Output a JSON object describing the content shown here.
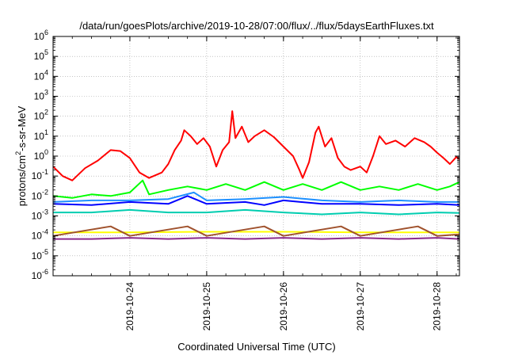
{
  "chart_data": {
    "type": "line",
    "title": "/data/run/goesPlots/archive/2019-10-28/07:00/flux/../flux/5daysEarthFluxes.txt",
    "xlabel": "Coordinated Universal Time (UTC)",
    "ylabel_parts": {
      "base": "protons/cm",
      "sup": "2",
      "rest": "-s-sr-MeV"
    },
    "y_scale": "log",
    "ylim": [
      1e-06,
      1000000.0
    ],
    "y_tick_exponents": [
      -6,
      -5,
      -4,
      -3,
      -2,
      -1,
      0,
      1,
      2,
      3,
      4,
      5,
      6
    ],
    "y_tick_base": "10",
    "xlim": [
      "2019-10-23T00:00",
      "2019-10-28T07:00"
    ],
    "x_ticks": [
      "2019-10-24",
      "2019-10-25",
      "2019-10-26",
      "2019-10-27",
      "2019-10-28"
    ],
    "grid": true,
    "series": [
      {
        "color": "#ff0000",
        "points": [
          [
            "2019-10-23T00:00",
            0.3
          ],
          [
            "2019-10-23T03:00",
            0.1
          ],
          [
            "2019-10-23T06:00",
            0.06
          ],
          [
            "2019-10-23T10:00",
            0.25
          ],
          [
            "2019-10-23T14:00",
            0.6
          ],
          [
            "2019-10-23T18:00",
            2.0
          ],
          [
            "2019-10-23T21:00",
            1.8
          ],
          [
            "2019-10-24T00:00",
            0.8
          ],
          [
            "2019-10-24T03:00",
            0.15
          ],
          [
            "2019-10-24T06:00",
            0.08
          ],
          [
            "2019-10-24T10:00",
            0.15
          ],
          [
            "2019-10-24T12:00",
            0.4
          ],
          [
            "2019-10-24T14:00",
            2.0
          ],
          [
            "2019-10-24T16:00",
            6.0
          ],
          [
            "2019-10-24T17:00",
            20.0
          ],
          [
            "2019-10-24T19:00",
            10.0
          ],
          [
            "2019-10-24T21:00",
            4.0
          ],
          [
            "2019-10-24T23:00",
            8.0
          ],
          [
            "2019-10-25T01:00",
            3.0
          ],
          [
            "2019-10-25T03:00",
            0.3
          ],
          [
            "2019-10-25T05:00",
            2.0
          ],
          [
            "2019-10-25T07:00",
            5.0
          ],
          [
            "2019-10-25T08:00",
            180.0
          ],
          [
            "2019-10-25T09:00",
            8.0
          ],
          [
            "2019-10-25T11:00",
            30.0
          ],
          [
            "2019-10-25T13:00",
            5.0
          ],
          [
            "2019-10-25T15:00",
            10.0
          ],
          [
            "2019-10-25T18:00",
            20.0
          ],
          [
            "2019-10-25T21:00",
            9.0
          ],
          [
            "2019-10-26T00:00",
            3.0
          ],
          [
            "2019-10-26T03:00",
            1.0
          ],
          [
            "2019-10-26T05:00",
            0.2
          ],
          [
            "2019-10-26T06:00",
            0.08
          ],
          [
            "2019-10-26T08:00",
            0.5
          ],
          [
            "2019-10-26T10:00",
            15.0
          ],
          [
            "2019-10-26T11:00",
            30.0
          ],
          [
            "2019-10-26T13:00",
            3.0
          ],
          [
            "2019-10-26T15:00",
            8.0
          ],
          [
            "2019-10-26T17:00",
            0.8
          ],
          [
            "2019-10-26T19:00",
            0.3
          ],
          [
            "2019-10-26T21:00",
            0.2
          ],
          [
            "2019-10-27T00:00",
            0.3
          ],
          [
            "2019-10-27T02:00",
            0.15
          ],
          [
            "2019-10-27T04:00",
            1.0
          ],
          [
            "2019-10-27T06:00",
            10.0
          ],
          [
            "2019-10-27T08:00",
            4.0
          ],
          [
            "2019-10-27T11:00",
            6.0
          ],
          [
            "2019-10-27T14:00",
            3.0
          ],
          [
            "2019-10-27T17:00",
            8.0
          ],
          [
            "2019-10-27T20:00",
            5.0
          ],
          [
            "2019-10-27T22:00",
            3.0
          ],
          [
            "2019-10-28T00:00",
            1.5
          ],
          [
            "2019-10-28T02:00",
            0.8
          ],
          [
            "2019-10-28T04:00",
            0.4
          ],
          [
            "2019-10-28T06:00",
            0.9
          ],
          [
            "2019-10-28T07:00",
            0.7
          ]
        ]
      },
      {
        "color": "#00ff00",
        "points": [
          [
            "2019-10-23T00:00",
            0.01
          ],
          [
            "2019-10-23T06:00",
            0.008
          ],
          [
            "2019-10-23T12:00",
            0.012
          ],
          [
            "2019-10-23T18:00",
            0.01
          ],
          [
            "2019-10-24T00:00",
            0.015
          ],
          [
            "2019-10-24T04:00",
            0.06
          ],
          [
            "2019-10-24T06:00",
            0.012
          ],
          [
            "2019-10-24T12:00",
            0.02
          ],
          [
            "2019-10-24T18:00",
            0.03
          ],
          [
            "2019-10-25T00:00",
            0.02
          ],
          [
            "2019-10-25T06:00",
            0.04
          ],
          [
            "2019-10-25T12:00",
            0.02
          ],
          [
            "2019-10-25T18:00",
            0.05
          ],
          [
            "2019-10-26T00:00",
            0.02
          ],
          [
            "2019-10-26T06:00",
            0.04
          ],
          [
            "2019-10-26T12:00",
            0.02
          ],
          [
            "2019-10-26T18:00",
            0.05
          ],
          [
            "2019-10-27T00:00",
            0.02
          ],
          [
            "2019-10-27T06:00",
            0.03
          ],
          [
            "2019-10-27T12:00",
            0.02
          ],
          [
            "2019-10-27T18:00",
            0.04
          ],
          [
            "2019-10-28T00:00",
            0.02
          ],
          [
            "2019-10-28T04:00",
            0.03
          ],
          [
            "2019-10-28T07:00",
            0.05
          ]
        ]
      },
      {
        "color": "#0000ff",
        "points": [
          [
            "2019-10-23T00:00",
            0.004
          ],
          [
            "2019-10-23T12:00",
            0.0035
          ],
          [
            "2019-10-24T00:00",
            0.005
          ],
          [
            "2019-10-24T12:00",
            0.004
          ],
          [
            "2019-10-24T18:00",
            0.01
          ],
          [
            "2019-10-25T00:00",
            0.004
          ],
          [
            "2019-10-25T12:00",
            0.005
          ],
          [
            "2019-10-25T18:00",
            0.0035
          ],
          [
            "2019-10-26T00:00",
            0.006
          ],
          [
            "2019-10-26T12:00",
            0.004
          ],
          [
            "2019-10-27T00:00",
            0.004
          ],
          [
            "2019-10-27T12:00",
            0.0035
          ],
          [
            "2019-10-28T00:00",
            0.004
          ],
          [
            "2019-10-28T07:00",
            0.0035
          ]
        ]
      },
      {
        "color": "#1e90ff",
        "points": [
          [
            "2019-10-23T00:00",
            0.005
          ],
          [
            "2019-10-23T12:00",
            0.006
          ],
          [
            "2019-10-24T00:00",
            0.006
          ],
          [
            "2019-10-24T12:00",
            0.007
          ],
          [
            "2019-10-24T20:00",
            0.015
          ],
          [
            "2019-10-25T00:00",
            0.006
          ],
          [
            "2019-10-25T12:00",
            0.007
          ],
          [
            "2019-10-26T00:00",
            0.009
          ],
          [
            "2019-10-26T12:00",
            0.006
          ],
          [
            "2019-10-27T00:00",
            0.005
          ],
          [
            "2019-10-27T12:00",
            0.006
          ],
          [
            "2019-10-28T00:00",
            0.005
          ],
          [
            "2019-10-28T07:00",
            0.005
          ]
        ]
      },
      {
        "color": "#00cdb0",
        "points": [
          [
            "2019-10-23T00:00",
            0.0015
          ],
          [
            "2019-10-23T12:00",
            0.0015
          ],
          [
            "2019-10-24T00:00",
            0.002
          ],
          [
            "2019-10-24T12:00",
            0.0015
          ],
          [
            "2019-10-25T00:00",
            0.0015
          ],
          [
            "2019-10-25T12:00",
            0.002
          ],
          [
            "2019-10-26T00:00",
            0.0015
          ],
          [
            "2019-10-26T12:00",
            0.0012
          ],
          [
            "2019-10-27T00:00",
            0.0015
          ],
          [
            "2019-10-27T12:00",
            0.0012
          ],
          [
            "2019-10-28T00:00",
            0.0015
          ],
          [
            "2019-10-28T07:00",
            0.0014
          ]
        ]
      },
      {
        "color": "#ffff00",
        "points": [
          [
            "2019-10-23T00:00",
            0.00015
          ],
          [
            "2019-10-24T00:00",
            0.00015
          ],
          [
            "2019-10-25T00:00",
            0.00016
          ],
          [
            "2019-10-26T00:00",
            0.00016
          ],
          [
            "2019-10-27T00:00",
            0.00015
          ],
          [
            "2019-10-28T00:00",
            0.00015
          ],
          [
            "2019-10-28T07:00",
            0.00015
          ]
        ]
      },
      {
        "color": "#a0522d",
        "points": [
          [
            "2019-10-23T00:00",
            0.0001
          ],
          [
            "2019-10-23T18:00",
            0.0003
          ],
          [
            "2019-10-24T00:00",
            0.0001
          ],
          [
            "2019-10-24T18:00",
            0.0003
          ],
          [
            "2019-10-25T00:00",
            0.0001
          ],
          [
            "2019-10-25T18:00",
            0.0003
          ],
          [
            "2019-10-26T00:00",
            0.0001
          ],
          [
            "2019-10-26T18:00",
            0.0003
          ],
          [
            "2019-10-27T00:00",
            0.0001
          ],
          [
            "2019-10-27T18:00",
            0.0003
          ],
          [
            "2019-10-28T00:00",
            0.0001
          ],
          [
            "2019-10-28T07:00",
            0.00012
          ]
        ]
      },
      {
        "color": "#8b2a8b",
        "points": [
          [
            "2019-10-23T00:00",
            7e-05
          ],
          [
            "2019-10-23T12:00",
            7e-05
          ],
          [
            "2019-10-24T00:00",
            8e-05
          ],
          [
            "2019-10-24T12:00",
            7e-05
          ],
          [
            "2019-10-25T00:00",
            8e-05
          ],
          [
            "2019-10-25T12:00",
            7e-05
          ],
          [
            "2019-10-26T00:00",
            8e-05
          ],
          [
            "2019-10-26T12:00",
            7e-05
          ],
          [
            "2019-10-27T00:00",
            8e-05
          ],
          [
            "2019-10-27T12:00",
            7e-05
          ],
          [
            "2019-10-28T00:00",
            8e-05
          ],
          [
            "2019-10-28T07:00",
            7e-05
          ]
        ]
      }
    ]
  }
}
